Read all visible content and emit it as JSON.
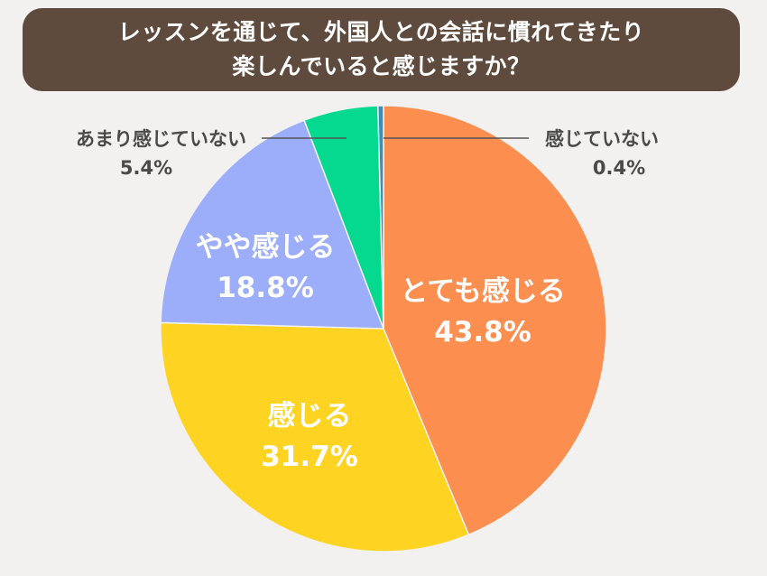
{
  "title": {
    "line1": "レッスンを通じて、外国人との会話に慣れてきたり",
    "line2": "楽しんでいると感じますか？"
  },
  "colors": {
    "background": "#f2f1ef",
    "title_bg": "#5e4b3d",
    "leader_line": "#555555"
  },
  "chart_data": {
    "type": "pie",
    "start": "12 o'clock",
    "direction": "clockwise",
    "slices": [
      {
        "label": "とても感じる",
        "value": 43.8,
        "value_text": "43.8%",
        "color": "#fc8e4f"
      },
      {
        "label": "感じる",
        "value": 31.7,
        "value_text": "31.7%",
        "color": "#fed322"
      },
      {
        "label": "やや感じる",
        "value": 18.8,
        "value_text": "18.8%",
        "color": "#9cadf9"
      },
      {
        "label": "あまり感じていない",
        "value": 5.4,
        "value_text": "5.4%",
        "color": "#04d98f"
      },
      {
        "label": "感じていない",
        "value": 0.4,
        "value_text": "0.4%",
        "color": "#3a8fb7"
      }
    ]
  }
}
